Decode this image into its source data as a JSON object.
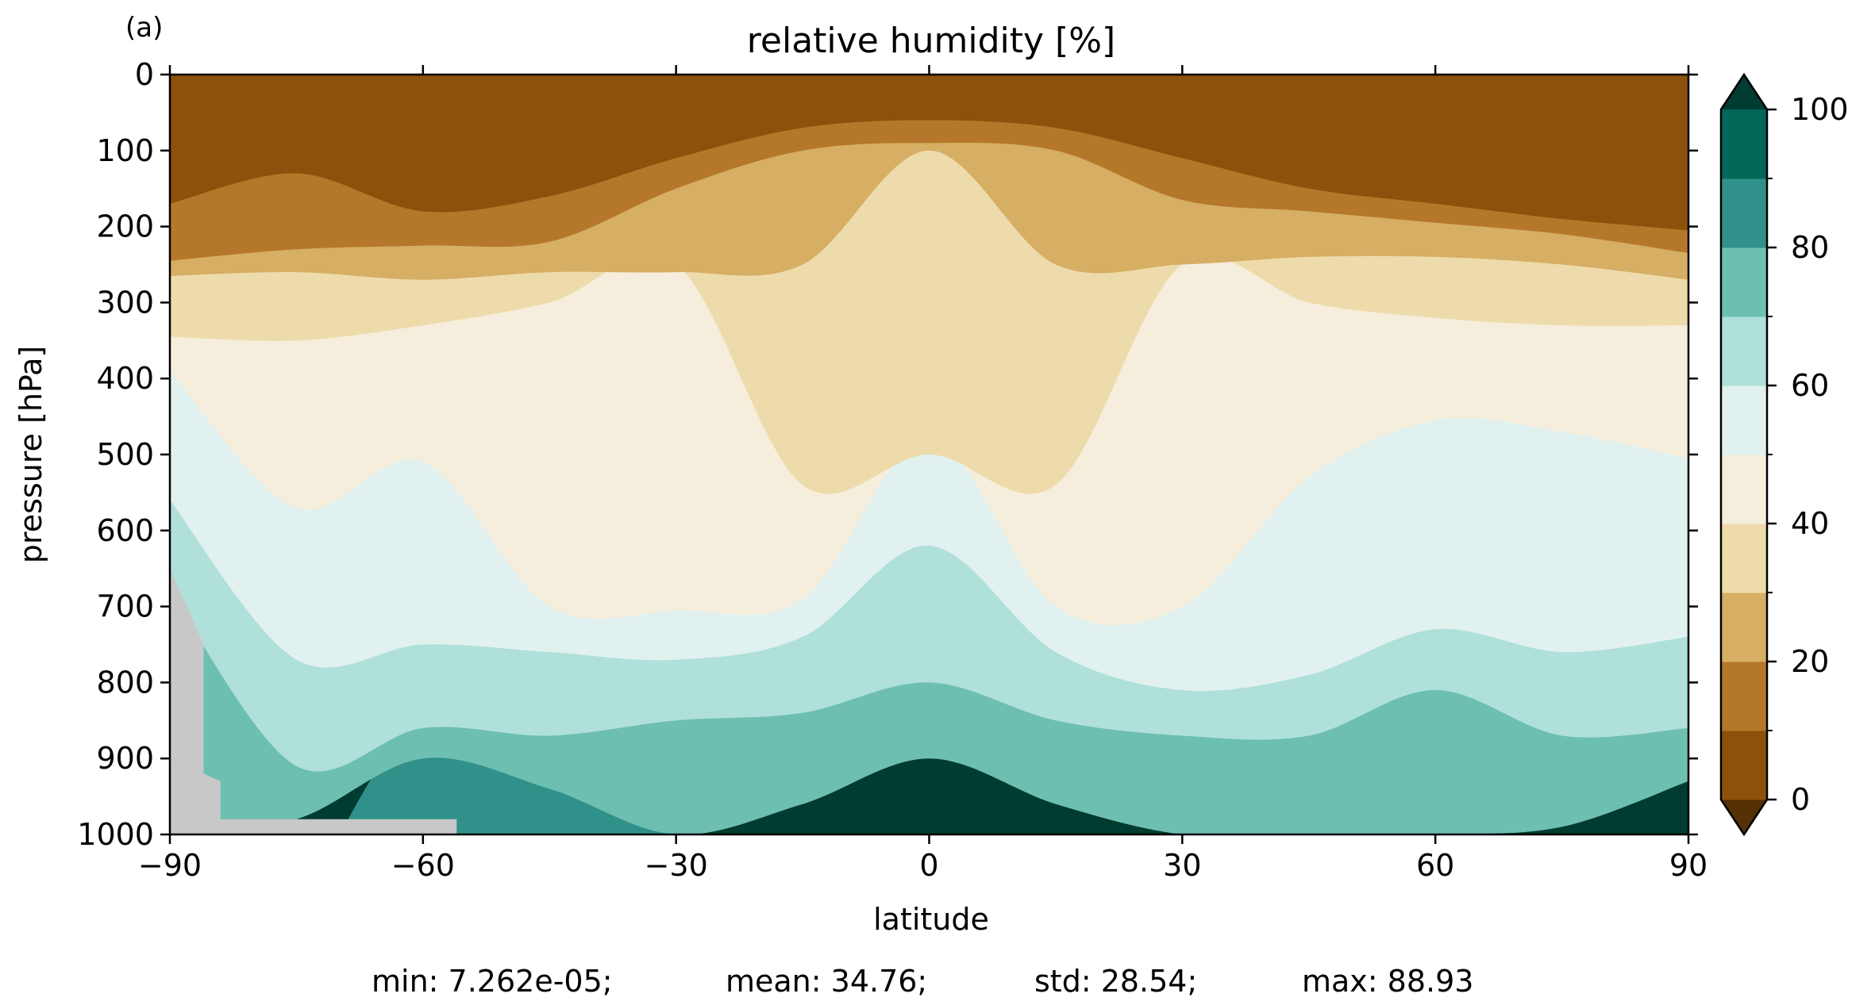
{
  "chart_data": {
    "type": "filled-contour",
    "panel_label": "(a)",
    "title": "relative humidity [%]",
    "xlabel": "latitude",
    "ylabel": "pressure [hPa]",
    "xlim": [
      -90,
      90
    ],
    "ylim": [
      0,
      1000
    ],
    "y_inverted": true,
    "x_ticks": [
      -90,
      -60,
      -30,
      0,
      30,
      60,
      90
    ],
    "x_tick_labels": [
      "−90",
      "−60",
      "−30",
      "0",
      "30",
      "60",
      "90"
    ],
    "y_ticks": [
      0,
      100,
      200,
      300,
      400,
      500,
      600,
      700,
      800,
      900,
      1000
    ],
    "y_tick_labels": [
      "0",
      "100",
      "200",
      "300",
      "400",
      "500",
      "600",
      "700",
      "800",
      "900",
      "1000"
    ],
    "colorbar": {
      "levels": [
        0,
        10,
        20,
        30,
        40,
        50,
        60,
        70,
        80,
        90,
        100
      ],
      "colors": [
        "#8c510a",
        "#b5782a",
        "#d6ae64",
        "#eedbab",
        "#f6eedc",
        "#e1f1ef",
        "#afe0d9",
        "#6dbfb1",
        "#30918a",
        "#026659"
      ],
      "under_color": "#543005",
      "over_color": "#003c30",
      "extend": "both",
      "tick_values": [
        0,
        20,
        40,
        60,
        80,
        100
      ],
      "tick_labels": [
        "0",
        "20",
        "40",
        "60",
        "80",
        "100"
      ],
      "minor_ticks": [
        10,
        30,
        50,
        70,
        90
      ]
    },
    "masked_color": "#c8c8c8",
    "field_data": [
      {
        "level_min": 0,
        "level_max": 10,
        "lat": [
          -90,
          -75,
          -60,
          -45,
          -30,
          -15,
          0,
          15,
          30,
          45,
          60,
          75,
          90
        ],
        "pressure_lower_edge": [
          170,
          130,
          180,
          160,
          110,
          70,
          60,
          70,
          110,
          150,
          170,
          190,
          205
        ]
      },
      {
        "level_min": 10,
        "level_max": 20,
        "lat": [
          -90,
          -75,
          -60,
          -45,
          -30,
          -15,
          0,
          15,
          30,
          45,
          60,
          75,
          90
        ],
        "pressure_lower_edge": [
          245,
          230,
          225,
          220,
          150,
          100,
          90,
          100,
          165,
          180,
          195,
          210,
          235
        ]
      },
      {
        "level_min": 20,
        "level_max": 30,
        "lat": [
          -90,
          -75,
          -60,
          -45,
          -30,
          -15,
          0,
          15,
          30,
          45,
          60,
          75,
          90
        ],
        "pressure_lower_edge": [
          265,
          260,
          270,
          260,
          260,
          250,
          100,
          250,
          250,
          240,
          240,
          250,
          270
        ]
      },
      {
        "level_min": 30,
        "level_max": 40,
        "lat": [
          -90,
          -75,
          -60,
          -45,
          -30,
          -15,
          0,
          15,
          30,
          45,
          60,
          75,
          90
        ],
        "pressure_lower_edge": [
          345,
          350,
          330,
          300,
          250,
          540,
          500,
          540,
          250,
          300,
          320,
          330,
          330
        ]
      },
      {
        "level_min": 40,
        "level_max": 50,
        "lat": [
          -90,
          -75,
          -60,
          -45,
          -30,
          -15,
          0,
          15,
          30,
          45,
          60,
          75,
          90
        ],
        "pressure_lower_edge": [
          390,
          570,
          510,
          700,
          705,
          690,
          480,
          700,
          700,
          530,
          455,
          470,
          505
        ]
      },
      {
        "level_min": 50,
        "level_max": 60,
        "lat": [
          -90,
          -75,
          -60,
          -45,
          -30,
          -15,
          0,
          15,
          30,
          45,
          60,
          75,
          90
        ],
        "pressure_lower_edge": [
          560,
          770,
          750,
          760,
          770,
          740,
          620,
          760,
          810,
          790,
          730,
          760,
          740
        ]
      },
      {
        "level_min": 60,
        "level_max": 70,
        "lat": [
          -90,
          -75,
          -60,
          -45,
          -30,
          -15,
          0,
          15,
          30,
          45,
          60,
          75,
          90
        ],
        "pressure_lower_edge": [
          680,
          910,
          860,
          870,
          850,
          840,
          800,
          850,
          870,
          870,
          810,
          870,
          860
        ]
      },
      {
        "level_min": 70,
        "level_max": 80,
        "lat": [
          -90,
          -75,
          -60,
          -45,
          -30,
          -15,
          0,
          15,
          30,
          45,
          60,
          75,
          90
        ],
        "pressure_lower_edge": [
          1000,
          980,
          900,
          940,
          1000,
          960,
          900,
          960,
          1000,
          1000,
          1000,
          990,
          930
        ]
      },
      {
        "level_min": 80,
        "level_max": 90,
        "lat": [
          -70,
          -60,
          -45,
          -30
        ],
        "pressure_lower_edge": [
          1000,
          850,
          880,
          950
        ],
        "note_region": "southern-midlatitude-core"
      }
    ],
    "stats": {
      "min": "min: 7.262e-05;",
      "mean": "mean: 34.76;",
      "std": "std: 28.54;",
      "max": "max: 88.93"
    }
  }
}
